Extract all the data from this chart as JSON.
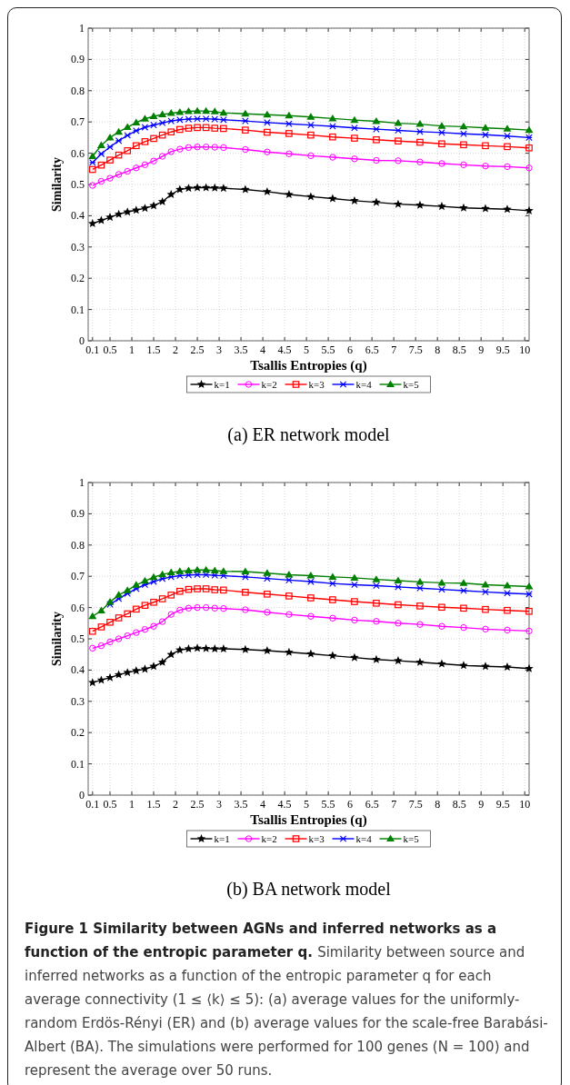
{
  "chart_data": [
    {
      "type": "line",
      "title": "(a) ER network model",
      "xlabel": "Tsallis Entropies (q)",
      "ylabel": "Similarity",
      "xlim": [
        0,
        10.1
      ],
      "ylim": [
        0,
        1
      ],
      "xticks": [
        0.1,
        0.5,
        1,
        1.5,
        2,
        2.5,
        3,
        3.5,
        4,
        4.5,
        5,
        5.5,
        6,
        6.5,
        7,
        7.5,
        8,
        8.5,
        9,
        9.5,
        10
      ],
      "yticks": [
        0,
        0.1,
        0.2,
        0.3,
        0.4,
        0.5,
        0.6,
        0.7,
        0.8,
        0.9,
        1
      ],
      "grid": true,
      "legend": "bottom",
      "line_style": "solid",
      "x": [
        0.1,
        0.3,
        0.5,
        0.7,
        0.9,
        1.1,
        1.3,
        1.5,
        1.7,
        1.9,
        2.1,
        2.3,
        2.5,
        2.7,
        2.9,
        3.1,
        3.6,
        4.1,
        4.6,
        5.1,
        5.6,
        6.1,
        6.6,
        7.1,
        7.6,
        8.1,
        8.6,
        9.1,
        9.6,
        10.1
      ],
      "series": [
        {
          "name": "k=1",
          "color": "#000000",
          "marker": "star",
          "values": [
            0.375,
            0.385,
            0.395,
            0.405,
            0.412,
            0.418,
            0.424,
            0.432,
            0.445,
            0.468,
            0.484,
            0.488,
            0.49,
            0.49,
            0.489,
            0.488,
            0.484,
            0.477,
            0.468,
            0.461,
            0.455,
            0.448,
            0.443,
            0.437,
            0.434,
            0.43,
            0.425,
            0.423,
            0.421,
            0.416
          ]
        },
        {
          "name": "k=2",
          "color": "#ff00ff",
          "marker": "circle",
          "values": [
            0.497,
            0.51,
            0.52,
            0.532,
            0.542,
            0.553,
            0.563,
            0.575,
            0.59,
            0.605,
            0.613,
            0.618,
            0.62,
            0.62,
            0.619,
            0.618,
            0.612,
            0.604,
            0.598,
            0.592,
            0.587,
            0.582,
            0.577,
            0.576,
            0.572,
            0.567,
            0.563,
            0.559,
            0.557,
            0.553
          ]
        },
        {
          "name": "k=3",
          "color": "#ff0000",
          "marker": "square",
          "values": [
            0.548,
            0.562,
            0.578,
            0.594,
            0.608,
            0.624,
            0.637,
            0.647,
            0.658,
            0.668,
            0.676,
            0.68,
            0.682,
            0.682,
            0.68,
            0.679,
            0.674,
            0.667,
            0.663,
            0.658,
            0.652,
            0.648,
            0.643,
            0.639,
            0.635,
            0.63,
            0.627,
            0.624,
            0.621,
            0.617
          ]
        },
        {
          "name": "k=4",
          "color": "#0000ff",
          "marker": "cross",
          "values": [
            0.57,
            0.598,
            0.62,
            0.64,
            0.657,
            0.672,
            0.683,
            0.69,
            0.697,
            0.703,
            0.707,
            0.709,
            0.71,
            0.71,
            0.709,
            0.707,
            0.703,
            0.698,
            0.694,
            0.69,
            0.686,
            0.681,
            0.677,
            0.673,
            0.669,
            0.666,
            0.662,
            0.659,
            0.655,
            0.65
          ]
        },
        {
          "name": "k=5",
          "color": "#008000",
          "marker": "triangle",
          "values": [
            0.59,
            0.625,
            0.65,
            0.668,
            0.683,
            0.698,
            0.71,
            0.718,
            0.724,
            0.728,
            0.731,
            0.734,
            0.735,
            0.735,
            0.733,
            0.729,
            0.726,
            0.723,
            0.72,
            0.716,
            0.711,
            0.706,
            0.702,
            0.696,
            0.693,
            0.687,
            0.685,
            0.681,
            0.678,
            0.674
          ]
        }
      ]
    },
    {
      "type": "line",
      "title": "(b) BA network model",
      "xlabel": "Tsallis Entropies (q)",
      "ylabel": "Similarity",
      "xlim": [
        0,
        10.1
      ],
      "ylim": [
        0,
        1
      ],
      "xticks": [
        0.1,
        0.5,
        1,
        1.5,
        2,
        2.5,
        3,
        3.5,
        4,
        4.5,
        5,
        5.5,
        6,
        6.5,
        7,
        7.5,
        8,
        8.5,
        9,
        9.5,
        10
      ],
      "yticks": [
        0,
        0.1,
        0.2,
        0.3,
        0.4,
        0.5,
        0.6,
        0.7,
        0.8,
        0.9,
        1
      ],
      "grid": true,
      "legend": "bottom",
      "line_style": "solid",
      "annotations": [
        "Figure 1 Similarity between AGNs and inferred networks as a function of the entropic parameter q.",
        "Similarity between source and inferred networks as a function of the entropic parameter q for each average connectivity (1 ≤ ⟨k⟩ ≤ 5): (a) average values for the uniformly-random Erdös-Rényi (ER) and (b) average values for the scale-free Barabási-Albert (BA). The simulations were performed for 100 genes (N = 100) and represent the average over 50 runs."
      ],
      "x": [
        0.1,
        0.3,
        0.5,
        0.7,
        0.9,
        1.1,
        1.3,
        1.5,
        1.7,
        1.9,
        2.1,
        2.3,
        2.5,
        2.7,
        2.9,
        3.1,
        3.6,
        4.1,
        4.6,
        5.1,
        5.6,
        6.1,
        6.6,
        7.1,
        7.6,
        8.1,
        8.6,
        9.1,
        9.6,
        10.1
      ],
      "series": [
        {
          "name": "k=1",
          "color": "#000000",
          "marker": "star",
          "values": [
            0.36,
            0.368,
            0.376,
            0.385,
            0.392,
            0.398,
            0.403,
            0.412,
            0.425,
            0.45,
            0.464,
            0.468,
            0.47,
            0.469,
            0.468,
            0.468,
            0.466,
            0.462,
            0.457,
            0.452,
            0.446,
            0.44,
            0.434,
            0.43,
            0.425,
            0.42,
            0.415,
            0.412,
            0.41,
            0.405
          ]
        },
        {
          "name": "k=2",
          "color": "#ff00ff",
          "marker": "circle",
          "values": [
            0.47,
            0.478,
            0.49,
            0.5,
            0.51,
            0.52,
            0.53,
            0.54,
            0.555,
            0.578,
            0.592,
            0.598,
            0.6,
            0.6,
            0.598,
            0.597,
            0.593,
            0.585,
            0.578,
            0.572,
            0.566,
            0.56,
            0.556,
            0.55,
            0.546,
            0.54,
            0.536,
            0.531,
            0.528,
            0.525
          ]
        },
        {
          "name": "k=3",
          "color": "#ff0000",
          "marker": "square",
          "values": [
            0.524,
            0.538,
            0.553,
            0.567,
            0.58,
            0.595,
            0.607,
            0.617,
            0.628,
            0.64,
            0.652,
            0.658,
            0.66,
            0.66,
            0.657,
            0.656,
            0.649,
            0.643,
            0.637,
            0.631,
            0.625,
            0.619,
            0.614,
            0.609,
            0.605,
            0.601,
            0.598,
            0.594,
            0.591,
            0.588
          ]
        },
        {
          "name": "k=4",
          "color": "#0000ff",
          "marker": "cross",
          "values": [
            null,
            null,
            0.61,
            0.628,
            0.645,
            0.66,
            0.673,
            0.683,
            0.692,
            0.698,
            0.702,
            0.704,
            0.705,
            0.705,
            0.703,
            0.702,
            0.698,
            0.693,
            0.688,
            0.683,
            0.677,
            0.673,
            0.67,
            0.666,
            0.662,
            0.658,
            0.654,
            0.65,
            0.646,
            0.643
          ]
        },
        {
          "name": "k=5",
          "color": "#008000",
          "marker": "triangle",
          "values": [
            0.572,
            0.59,
            0.618,
            0.64,
            0.655,
            0.672,
            0.685,
            0.697,
            0.706,
            0.712,
            0.716,
            0.718,
            0.72,
            0.72,
            0.718,
            0.716,
            0.715,
            0.71,
            0.705,
            0.702,
            0.698,
            0.695,
            0.69,
            0.686,
            0.682,
            0.679,
            0.678,
            0.673,
            0.67,
            0.667
          ]
        }
      ]
    }
  ]
}
